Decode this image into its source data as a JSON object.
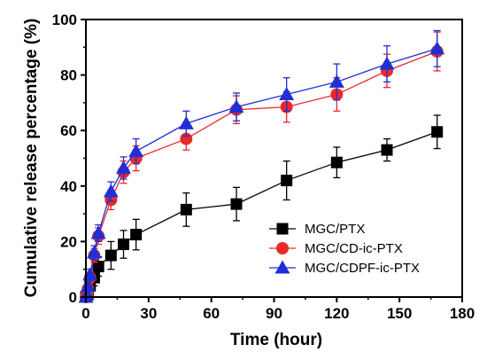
{
  "chart_data": {
    "type": "line",
    "xlabel": "Time (hour)",
    "ylabel": "Cumulative release percentage (%)",
    "xlim": [
      0,
      180
    ],
    "ylim": [
      0,
      100
    ],
    "xticks": [
      0,
      30,
      60,
      90,
      120,
      150,
      180
    ],
    "yticks": [
      0,
      20,
      40,
      60,
      80,
      100
    ],
    "grid": false,
    "legend_position": "bottom-right",
    "series": [
      {
        "name": "MGC/PTX",
        "color": "#000000",
        "marker": "square",
        "x": [
          0,
          0.5,
          1,
          2,
          4,
          6,
          12,
          18,
          24,
          48,
          72,
          96,
          120,
          144,
          168
        ],
        "y": [
          0,
          0.5,
          1.5,
          4,
          7,
          11,
          15,
          19,
          22.5,
          31.5,
          33.5,
          42,
          48.5,
          53,
          59.5
        ],
        "err": [
          0.5,
          0.5,
          1,
          2,
          3,
          3.5,
          5,
          5,
          5.5,
          6,
          6,
          7,
          5.5,
          4,
          6
        ]
      },
      {
        "name": "MGC/CD-ic-PTX",
        "color": "#e8292b",
        "marker": "circle",
        "x": [
          0,
          0.5,
          1,
          2,
          4,
          6,
          12,
          18,
          24,
          48,
          72,
          96,
          120,
          144,
          168
        ],
        "y": [
          0,
          1,
          3,
          7,
          15,
          22,
          35,
          45,
          50,
          57,
          67.5,
          68.5,
          73,
          81.5,
          88.5
        ],
        "err": [
          0.5,
          1,
          1.5,
          2,
          2.5,
          3,
          3.5,
          4,
          4.5,
          4,
          5,
          5.5,
          6,
          6,
          7
        ]
      },
      {
        "name": "MGC/CDPF-ic-PTX",
        "color": "#1f2fd6",
        "marker": "triangle",
        "x": [
          0,
          0.5,
          1,
          2,
          4,
          6,
          12,
          18,
          24,
          48,
          72,
          96,
          120,
          144,
          168
        ],
        "y": [
          0,
          1,
          4,
          8,
          16,
          23,
          38,
          46.5,
          52.5,
          62.5,
          68.5,
          73,
          77.5,
          84,
          89.5
        ],
        "err": [
          0.5,
          1,
          1.5,
          2,
          2.5,
          3,
          3.5,
          4,
          4.5,
          4.5,
          5,
          6,
          6.5,
          6.5,
          6.5
        ]
      }
    ]
  }
}
